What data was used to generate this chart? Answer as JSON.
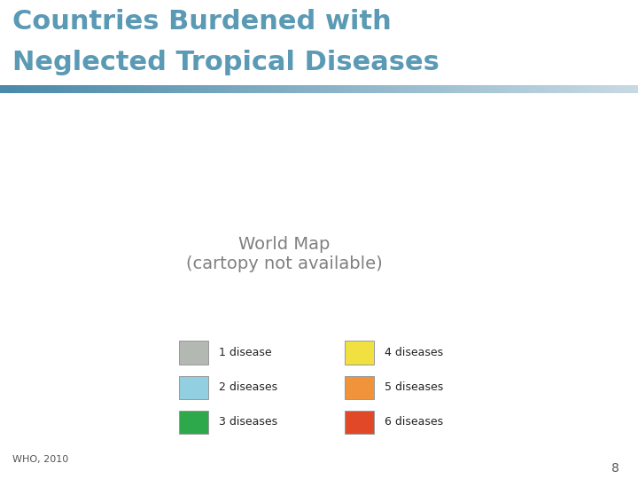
{
  "title_line1": "Countries Burdened with",
  "title_line2": "Neglected Tropical Diseases",
  "title_color": "#5b9ab5",
  "background_color": "#ffffff",
  "source_text": "WHO, 2010",
  "page_number": "8",
  "legend_items": [
    {
      "label": "1 disease",
      "color": "#b3b8b3"
    },
    {
      "label": "2 diseases",
      "color": "#92cfe0"
    },
    {
      "label": "3 diseases",
      "color": "#2da84a"
    },
    {
      "label": "4 diseases",
      "color": "#f0e040"
    },
    {
      "label": "5 diseases",
      "color": "#f0933a"
    },
    {
      "label": "6 diseases",
      "color": "#e04828"
    }
  ],
  "country_colors": {
    "Mexico": "#2da84a",
    "Guatemala": "#2da84a",
    "Belize": "#2da84a",
    "Honduras": "#2da84a",
    "Nicaragua": "#2da84a",
    "El Salvador": "#2da84a",
    "Costa Rica": "#2da84a",
    "Panama": "#2da84a",
    "Cuba": "#2da84a",
    "Haiti": "#2da84a",
    "Dominican Rep.": "#2da84a",
    "Jamaica": "#2da84a",
    "Trinidad and Tobago": "#2da84a",
    "Colombia": "#92cfe0",
    "Venezuela": "#92cfe0",
    "Guyana": "#92cfe0",
    "Suriname": "#92cfe0",
    "Ecuador": "#92cfe0",
    "Peru": "#92cfe0",
    "Bolivia": "#b3b8b3",
    "Brazil": "#f0933a",
    "Paraguay": "#92cfe0",
    "Argentina": "#b3b8b3",
    "Chile": "#b3b8b3",
    "Uruguay": "#b3b8b3",
    "Mauritania": "#2da84a",
    "Senegal": "#2da84a",
    "Gambia": "#2da84a",
    "Guinea-Bissau": "#2da84a",
    "Guinea": "#f0933a",
    "Sierra Leone": "#f0933a",
    "Liberia": "#f0933a",
    "Ivory Coast": "#f0933a",
    "Ghana": "#f0933a",
    "Togo": "#f0933a",
    "Benin": "#f0933a",
    "Nigeria": "#f0933a",
    "Niger": "#f0933a",
    "Mali": "#f0933a",
    "Burkina Faso": "#f0933a",
    "Cameroon": "#f0933a",
    "Central African Rep.": "#f0933a",
    "Chad": "#2da84a",
    "Sudan": "#f0933a",
    "S. Sudan": "#f0933a",
    "Ethiopia": "#f0933a",
    "Eritrea": "#2da84a",
    "Djibouti": "#2da84a",
    "Somalia": "#f0933a",
    "Kenya": "#f0933a",
    "Uganda": "#f0933a",
    "Dem. Rep. Congo": "#f0933a",
    "Congo": "#f0933a",
    "Gabon": "#f0933a",
    "Eq. Guinea": "#f0933a",
    "Angola": "#f0933a",
    "Tanzania": "#f0933a",
    "Rwanda": "#f0933a",
    "Burundi": "#f0933a",
    "Zambia": "#f0933a",
    "Malawi": "#f0933a",
    "Mozambique": "#f0933a",
    "Zimbabwe": "#f0933a",
    "Madagascar": "#f0e040",
    "Botswana": "#2da84a",
    "Namibia": "#2da84a",
    "South Africa": "#2da84a",
    "eSwatini": "#2da84a",
    "Lesotho": "#2da84a",
    "Egypt": "#2da84a",
    "Libya": "#2da84a",
    "Morocco": "#2da84a",
    "Algeria": "#2da84a",
    "Tunisia": "#2da84a",
    "W. Sahara": "#2da84a",
    "Yemen": "#2da84a",
    "Saudi Arabia": "#f0e040",
    "Oman": "#2da84a",
    "Iraq": "#2da84a",
    "Iran": "#2da84a",
    "Afghanistan": "#2da84a",
    "Pakistan": "#f0933a",
    "India": "#f0933a",
    "Nepal": "#2da84a",
    "Bangladesh": "#2da84a",
    "Myanmar": "#f0933a",
    "Thailand": "#2da84a",
    "Laos": "#2da84a",
    "Vietnam": "#2da84a",
    "Cambodia": "#92cfe0",
    "Malaysia": "#2da84a",
    "Indonesia": "#2da84a",
    "Philippines": "#2da84a",
    "Papua New Guinea": "#2da84a",
    "China": "#f0e040",
    "Mongolia": "#b3b8b3",
    "Kazakhstan": "#b3b8b3",
    "Uzbekistan": "#b3b8b3",
    "Kyrgyzstan": "#b3b8b3",
    "Russia": "#b3b8b3",
    "Australia": "#b3b8b3",
    "Sri Lanka": "#92cfe0",
    "North Korea": "#b3b8b3",
    "South Korea": "#b3b8b3",
    "Japan": "#b3b8b3",
    "Jordan": "#2da84a",
    "Syria": "#2da84a",
    "Lebanon": "#2da84a",
    "Israel": "#2da84a",
    "Kuwait": "#2da84a",
    "United Arab Emirates": "#2da84a",
    "Qatar": "#2da84a",
    "Bahrain": "#2da84a",
    "Azerbaijan": "#b3b8b3",
    "Georgia": "#b3b8b3",
    "Armenia": "#b3b8b3",
    "Turkey": "#b3b8b3",
    "Tajikistan": "#b3b8b3",
    "Turkmenistan": "#b3b8b3"
  },
  "default_color": "#e8e8e8",
  "no_data_color": "#f0f0f0",
  "title_fontsize": 22,
  "legend_fontsize": 9,
  "source_fontsize": 8,
  "page_fontsize": 10
}
